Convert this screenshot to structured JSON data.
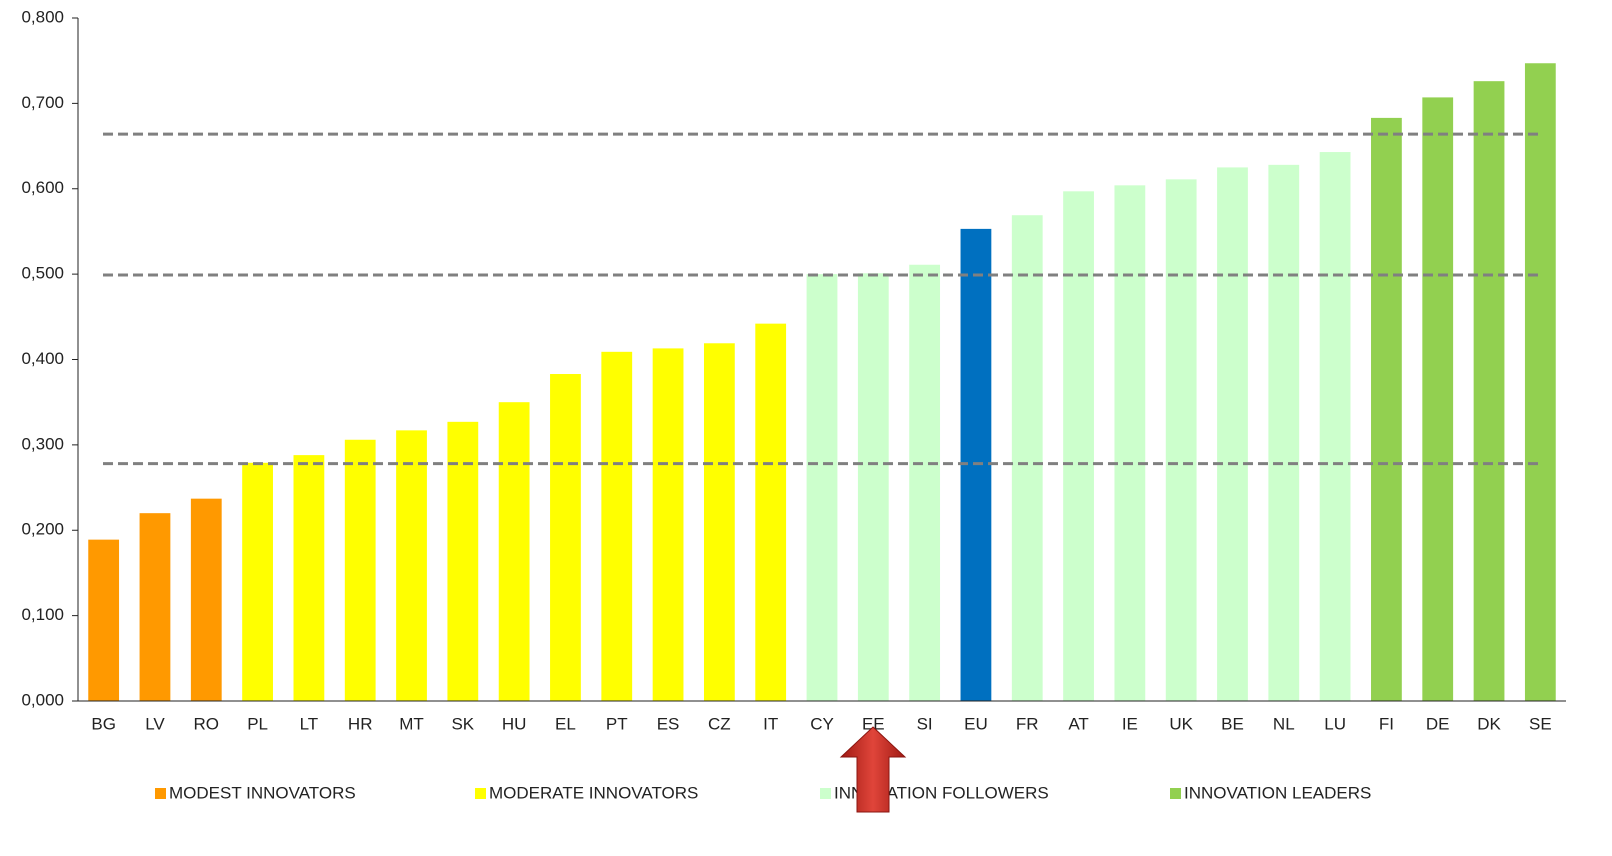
{
  "chart_data": {
    "type": "bar",
    "categories": [
      "BG",
      "LV",
      "RO",
      "PL",
      "LT",
      "HR",
      "MT",
      "SK",
      "HU",
      "EL",
      "PT",
      "ES",
      "CZ",
      "IT",
      "CY",
      "EE",
      "SI",
      "EU",
      "FR",
      "AT",
      "IE",
      "UK",
      "BE",
      "NL",
      "LU",
      "FI",
      "DE",
      "DK",
      "SE"
    ],
    "values": [
      0.189,
      0.22,
      0.237,
      0.279,
      0.288,
      0.306,
      0.317,
      0.327,
      0.35,
      0.383,
      0.409,
      0.413,
      0.419,
      0.442,
      0.5,
      0.501,
      0.511,
      0.553,
      0.569,
      0.597,
      0.604,
      0.611,
      0.625,
      0.628,
      0.643,
      0.683,
      0.707,
      0.726,
      0.747
    ],
    "colors": [
      "#ff9900",
      "#ff9900",
      "#ff9900",
      "#ffff00",
      "#ffff00",
      "#ffff00",
      "#ffff00",
      "#ffff00",
      "#ffff00",
      "#ffff00",
      "#ffff00",
      "#ffff00",
      "#ffff00",
      "#ffff00",
      "#ccffcc",
      "#ccffcc",
      "#ccffcc",
      "#0070c0",
      "#ccffcc",
      "#ccffcc",
      "#ccffcc",
      "#ccffcc",
      "#ccffcc",
      "#ccffcc",
      "#ccffcc",
      "#92d050",
      "#92d050",
      "#92d050",
      "#92d050"
    ],
    "legend": [
      {
        "name": "MODEST INNOVATORS",
        "color": "#ff9900"
      },
      {
        "name": "MODERATE INNOVATORS",
        "color": "#ffff00"
      },
      {
        "name": "INNOVATION FOLLOWERS",
        "color": "#ccffcc"
      },
      {
        "name": "INNOVATION LEADERS",
        "color": "#92d050"
      }
    ],
    "reference_lines": [
      0.278,
      0.499,
      0.664
    ],
    "reference_line_color": "#808080",
    "ylim": [
      0,
      0.8
    ],
    "yticks": [
      {
        "value": 0,
        "label": "0,000"
      },
      {
        "value": 0.1,
        "label": "0,100"
      },
      {
        "value": 0.2,
        "label": "0,200"
      },
      {
        "value": 0.3,
        "label": "0,300"
      },
      {
        "value": 0.4,
        "label": "0,400"
      },
      {
        "value": 0.5,
        "label": "0,500"
      },
      {
        "value": 0.6,
        "label": "0,600"
      },
      {
        "value": 0.7,
        "label": "0,700"
      },
      {
        "value": 0.8,
        "label": "0,800"
      }
    ],
    "grid": false
  }
}
